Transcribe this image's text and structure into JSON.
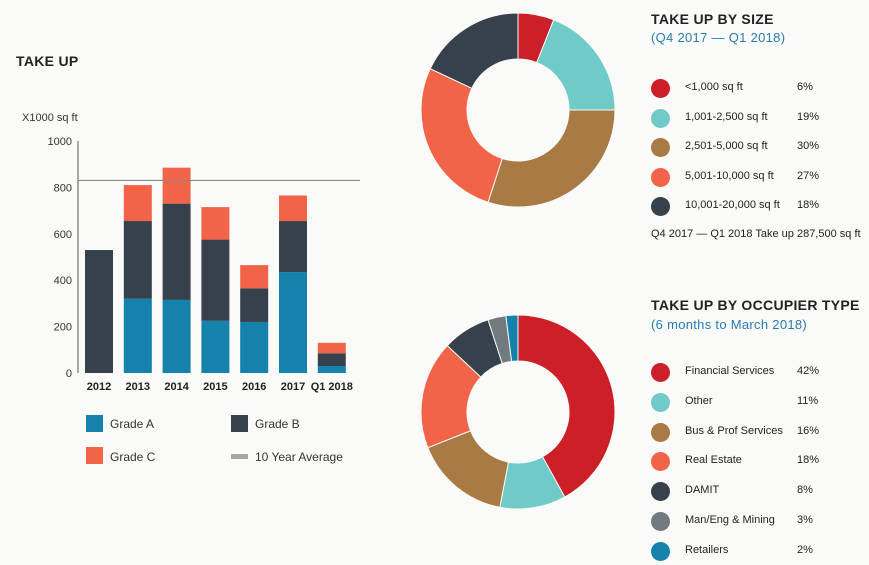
{
  "colors": {
    "grade_a": "#1482ac",
    "grade_b": "#36414c",
    "grade_c": "#f26447",
    "avg": "#a6a6a6",
    "red": "#cc1f27",
    "teal": "#70cbc8",
    "brown": "#a87a44",
    "orange": "#f26447",
    "dark": "#36414c",
    "grey": "#707a7f",
    "blue": "#1482ac"
  },
  "takeup": {
    "title": "TAKE UP",
    "unit_label": "X1000 sq ft"
  },
  "legend": {
    "grade_a": "Grade A",
    "grade_b": "Grade B",
    "grade_c": "Grade C",
    "avg": "10 Year Average"
  },
  "size_section": {
    "title": "TAKE UP BY SIZE",
    "subtitle": "(Q4 2017 — Q1 2018)",
    "note": "Q4 2017 — Q1 2018 Take up 287,500 sq ft"
  },
  "occupier_section": {
    "title": "TAKE UP BY OCCUPIER TYPE",
    "subtitle": "(6 months to March 2018)"
  },
  "chart_data": [
    {
      "type": "bar",
      "title": "TAKE UP",
      "ylabel": "X1000 sq ft",
      "ylim": [
        0,
        1000
      ],
      "yticks": [
        0,
        200,
        400,
        600,
        800,
        1000
      ],
      "categories": [
        "2012",
        "2013",
        "2014",
        "2015",
        "2016",
        "2017",
        "Q1 2018"
      ],
      "stacked": true,
      "series": [
        {
          "name": "Grade A",
          "color_key": "grade_a",
          "values": [
            0,
            320,
            315,
            225,
            220,
            435,
            30
          ]
        },
        {
          "name": "Grade B",
          "color_key": "grade_b",
          "values": [
            530,
            335,
            415,
            350,
            145,
            220,
            55
          ]
        },
        {
          "name": "Grade C",
          "color_key": "grade_c",
          "values": [
            0,
            155,
            155,
            140,
            100,
            110,
            45
          ]
        }
      ],
      "reference_line": {
        "name": "10 Year Average",
        "value": 830
      }
    },
    {
      "type": "pie",
      "title": "TAKE UP BY SIZE",
      "slices": [
        {
          "label": "<1,000 sq ft",
          "value": 6,
          "display": "6%",
          "color_key": "red"
        },
        {
          "label": "1,001-2,500 sq ft",
          "value": 19,
          "display": "19%",
          "color_key": "teal"
        },
        {
          "label": "2,501-5,000 sq ft",
          "value": 30,
          "display": "30%",
          "color_key": "brown"
        },
        {
          "label": "5,001-10,000 sq ft",
          "value": 27,
          "display": "27%",
          "color_key": "orange"
        },
        {
          "label": "10,001-20,000 sq ft",
          "value": 18,
          "display": "18%",
          "color_key": "dark"
        }
      ]
    },
    {
      "type": "pie",
      "title": "TAKE UP BY OCCUPIER TYPE",
      "slices": [
        {
          "label": "Financial Services",
          "value": 42,
          "display": "42%",
          "color_key": "red"
        },
        {
          "label": "Other",
          "value": 11,
          "display": "11%",
          "color_key": "teal"
        },
        {
          "label": "Bus & Prof Services",
          "value": 16,
          "display": "16%",
          "color_key": "brown"
        },
        {
          "label": "Real Estate",
          "value": 18,
          "display": "18%",
          "color_key": "orange"
        },
        {
          "label": "DAMIT",
          "value": 8,
          "display": "8%",
          "color_key": "dark"
        },
        {
          "label": "Man/Eng & Mining",
          "value": 3,
          "display": "3%",
          "color_key": "grey"
        },
        {
          "label": "Retailers",
          "value": 2,
          "display": "2%",
          "color_key": "blue"
        }
      ]
    }
  ]
}
